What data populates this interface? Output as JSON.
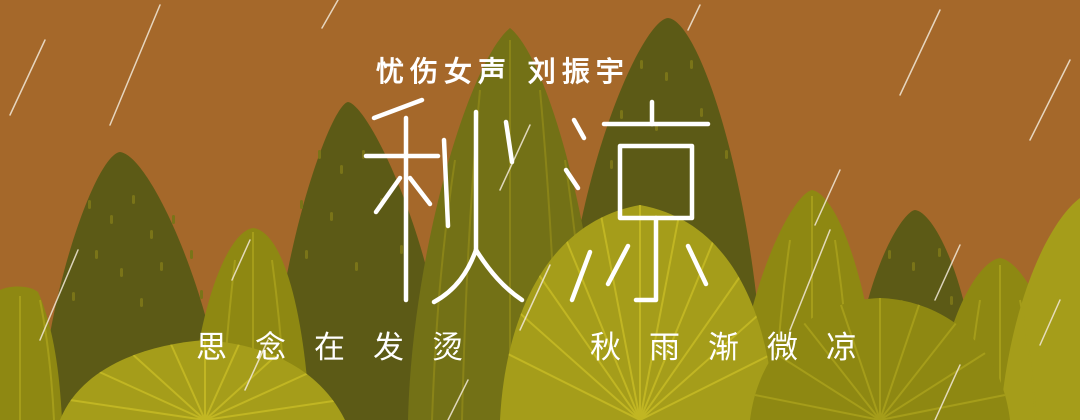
{
  "banner": {
    "subtitle": "忧伤女声  刘振宇",
    "title": "秋凉",
    "line_left": "思念在发烫",
    "line_right": "秋雨渐微凉"
  },
  "colors": {
    "background": "#a5682a",
    "hill_dark": "#5c5a16",
    "hill_mid": "#737116",
    "hill_light": "#8e8812",
    "hill_bright": "#a59d1a",
    "rain": "#f2e9d8",
    "text": "#ffffff"
  },
  "icons": [
    "rain-streak-icon",
    "hill-icon"
  ]
}
